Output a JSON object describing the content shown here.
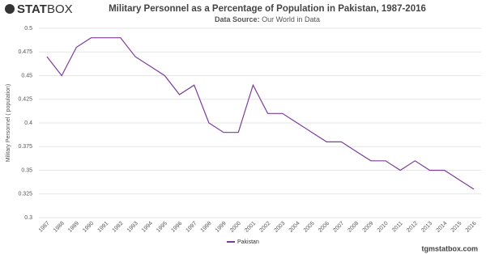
{
  "brand": [
    "STAT",
    "BOX"
  ],
  "footer": "tgmstatbox.com",
  "chart_data": {
    "type": "line",
    "title": "Military Personnel as a Percentage of Population in Pakistan, 1987-2016",
    "subtitle_label": "Data Source:",
    "subtitle": "Our World in Data",
    "y_label": "Military Personnel ( population)",
    "categories": [
      "1987",
      "1988",
      "1989",
      "1990",
      "1991",
      "1992",
      "1993",
      "1994",
      "1995",
      "1996",
      "1997",
      "1998",
      "1999",
      "2000",
      "2001",
      "2002",
      "2003",
      "2004",
      "2005",
      "2006",
      "2007",
      "2008",
      "2009",
      "2010",
      "2011",
      "2012",
      "2013",
      "2014",
      "2015",
      "2016"
    ],
    "series": [
      {
        "name": "Pakistan",
        "color": "#7d3c98",
        "values": [
          0.47,
          0.45,
          0.48,
          0.49,
          0.49,
          0.49,
          0.47,
          0.46,
          0.45,
          0.43,
          0.44,
          0.4,
          0.39,
          0.39,
          0.44,
          0.41,
          0.41,
          0.4,
          0.39,
          0.38,
          0.38,
          0.37,
          0.36,
          0.36,
          0.35,
          0.36,
          0.35,
          0.35,
          0.34,
          0.33
        ]
      }
    ],
    "ylim": [
      0.3,
      0.5
    ],
    "yticks": [
      0.3,
      0.325,
      0.35,
      0.375,
      0.4,
      0.425,
      0.45,
      0.475,
      0.5
    ],
    "grid": true
  }
}
